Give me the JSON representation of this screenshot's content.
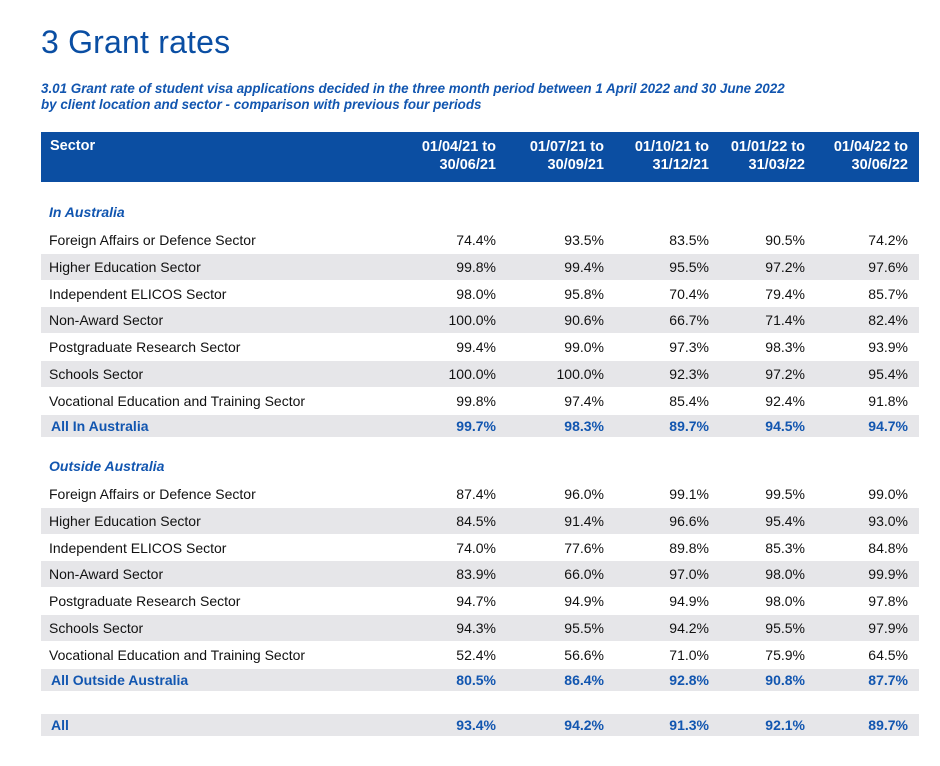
{
  "title": "3 Grant rates",
  "caption": "3.01 Grant rate of student visa applications decided in the three month period between 1 April 2022 and 30 June 2022 by client location and sector - comparison with previous four periods",
  "table": {
    "header": {
      "sector": "Sector",
      "periods": [
        {
          "line1": "01/04/21 to",
          "line2": "30/06/21"
        },
        {
          "line1": "01/07/21 to",
          "line2": "30/09/21"
        },
        {
          "line1": "01/10/21 to",
          "line2": "31/12/21"
        },
        {
          "line1": "01/01/22 to",
          "line2": "31/03/22"
        },
        {
          "line1": "01/04/22 to",
          "line2": "30/06/22"
        }
      ]
    },
    "groups": [
      {
        "label": "In Australia",
        "rows": [
          {
            "sector": "Foreign Affairs or Defence Sector",
            "values": [
              "74.4%",
              "93.5%",
              "83.5%",
              "90.5%",
              "74.2%"
            ]
          },
          {
            "sector": "Higher Education Sector",
            "values": [
              "99.8%",
              "99.4%",
              "95.5%",
              "97.2%",
              "97.6%"
            ]
          },
          {
            "sector": "Independent ELICOS Sector",
            "values": [
              "98.0%",
              "95.8%",
              "70.4%",
              "79.4%",
              "85.7%"
            ]
          },
          {
            "sector": "Non-Award Sector",
            "values": [
              "100.0%",
              "90.6%",
              "66.7%",
              "71.4%",
              "82.4%"
            ]
          },
          {
            "sector": "Postgraduate Research Sector",
            "values": [
              "99.4%",
              "99.0%",
              "97.3%",
              "98.3%",
              "93.9%"
            ]
          },
          {
            "sector": "Schools Sector",
            "values": [
              "100.0%",
              "100.0%",
              "92.3%",
              "97.2%",
              "95.4%"
            ]
          },
          {
            "sector": "Vocational Education and Training Sector",
            "values": [
              "99.8%",
              "97.4%",
              "85.4%",
              "92.4%",
              "91.8%"
            ]
          }
        ],
        "total": {
          "sector": "All In Australia",
          "values": [
            "99.7%",
            "98.3%",
            "89.7%",
            "94.5%",
            "94.7%"
          ]
        }
      },
      {
        "label": "Outside Australia",
        "rows": [
          {
            "sector": "Foreign Affairs or Defence Sector",
            "values": [
              "87.4%",
              "96.0%",
              "99.1%",
              "99.5%",
              "99.0%"
            ]
          },
          {
            "sector": "Higher Education Sector",
            "values": [
              "84.5%",
              "91.4%",
              "96.6%",
              "95.4%",
              "93.0%"
            ]
          },
          {
            "sector": "Independent ELICOS Sector",
            "values": [
              "74.0%",
              "77.6%",
              "89.8%",
              "85.3%",
              "84.8%"
            ]
          },
          {
            "sector": "Non-Award Sector",
            "values": [
              "83.9%",
              "66.0%",
              "97.0%",
              "98.0%",
              "99.9%"
            ]
          },
          {
            "sector": "Postgraduate Research Sector",
            "values": [
              "94.7%",
              "94.9%",
              "94.9%",
              "98.0%",
              "97.8%"
            ]
          },
          {
            "sector": "Schools Sector",
            "values": [
              "94.3%",
              "95.5%",
              "94.2%",
              "95.5%",
              "97.9%"
            ]
          },
          {
            "sector": "Vocational Education and Training Sector",
            "values": [
              "52.4%",
              "56.6%",
              "71.0%",
              "75.9%",
              "64.5%"
            ]
          }
        ],
        "total": {
          "sector": "All Outside Australia",
          "values": [
            "80.5%",
            "86.4%",
            "92.8%",
            "90.8%",
            "87.7%"
          ]
        }
      }
    ],
    "grand_total": {
      "sector": "All",
      "values": [
        "93.4%",
        "94.2%",
        "91.3%",
        "92.1%",
        "89.7%"
      ]
    }
  },
  "colors": {
    "brand_blue": "#0b4ea2",
    "text_blue": "#1256b0",
    "row_shade": "#e6e6e9"
  }
}
